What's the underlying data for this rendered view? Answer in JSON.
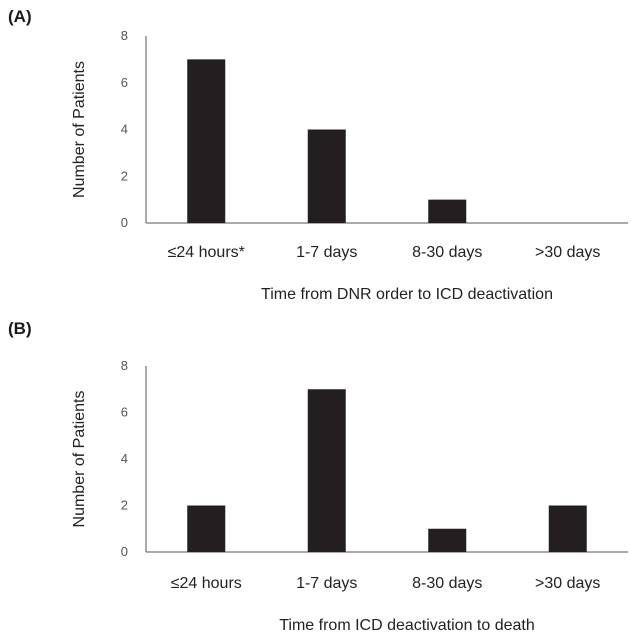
{
  "chart_data": [
    {
      "type": "bar",
      "panel_label": "(A)",
      "categories": [
        "≤24 hours*",
        "1-7 days",
        "8-30 days",
        ">30 days"
      ],
      "values": [
        7,
        4,
        1,
        0
      ],
      "xlabel": "Time from DNR order to ICD deactivation",
      "ylabel": "Number of Patients",
      "ylim": [
        0,
        8
      ],
      "yticks": [
        0,
        2,
        4,
        6,
        8
      ],
      "grid": false,
      "bar_color": "#231f20"
    },
    {
      "type": "bar",
      "panel_label": "(B)",
      "categories": [
        "≤24 hours",
        "1-7 days",
        "8-30 days",
        ">30 days"
      ],
      "values": [
        2,
        7,
        1,
        2
      ],
      "xlabel": "Time from ICD deactivation to death",
      "ylabel": "Number of Patients",
      "ylim": [
        0,
        8
      ],
      "yticks": [
        0,
        2,
        4,
        6,
        8
      ],
      "grid": false,
      "bar_color": "#231f20"
    }
  ]
}
